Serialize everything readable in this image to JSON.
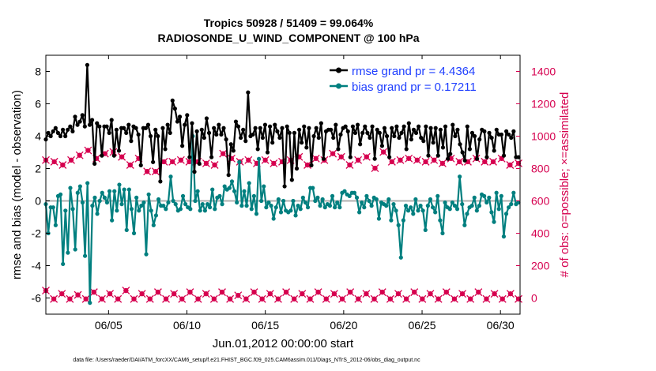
{
  "chart_data": {
    "type": "line",
    "title_line1": "Tropics 50928 / 51409 = 99.064%",
    "title_line2": "RADIOSONDE_U_WIND_COMPONENT @ 100 hPa",
    "xlabel": "Jun.01,2012 00:00:00 start",
    "ylabel_left": "rmse and bias (model - observation)",
    "ylabel_right": "# of obs: o=possible; ×=assimilated",
    "footnote": "data file: /Users/raeder/DAI/ATM_forcXX/CAM6_setup/f.e21.FHIST_BGC.f09_025.CAM6assim.011/Diags_NTrS_2012-06/obs_diag_output.nc",
    "xlim": [
      1.0,
      31.25
    ],
    "ylim_left": [
      -7,
      9
    ],
    "ylim_right": [
      -100,
      1500
    ],
    "x_ticks": [
      5,
      10,
      15,
      20,
      25,
      30
    ],
    "x_tick_labels": [
      "06/05",
      "06/10",
      "06/15",
      "06/20",
      "06/25",
      "06/30"
    ],
    "y_ticks_left": [
      8,
      6,
      4,
      2,
      0,
      -2,
      -4,
      -6
    ],
    "y_tick_labels_left": [
      "8",
      "6",
      "4",
      "2",
      "0",
      "-2",
      "-4",
      "-6"
    ],
    "y_ticks_right": [
      1400,
      1200,
      1000,
      800,
      600,
      400,
      200,
      0
    ],
    "y_tick_labels_right": [
      "1400",
      "1200",
      "1000",
      "800",
      "600",
      "400",
      "200",
      "0"
    ],
    "colors": {
      "rmse": "#000000",
      "bias": "#007f7f",
      "obs": "#d6004f",
      "zero": "#b0b0b0",
      "legend_text": "#1f3fff"
    },
    "series": [
      {
        "name": "rmse",
        "legend": "rmse grand pr = 4.4364",
        "values": [
          3.8,
          4.2,
          4.0,
          4.3,
          4.5,
          4.2,
          4.0,
          4.4,
          4.0,
          4.4,
          4.6,
          4.3,
          5.2,
          4.7,
          4.9,
          5.3,
          4.6,
          8.4,
          4.7,
          5.0,
          2.3,
          4.8,
          4.6,
          2.8,
          4.6,
          4.6,
          4.2,
          5.0,
          2.8,
          4.4,
          3.1,
          4.5,
          4.5,
          4.2,
          4.7,
          3.7,
          4.6,
          4.5,
          4.1,
          2.2,
          4.5,
          4.5,
          4.7,
          4.0,
          2.4,
          4.4,
          4.0,
          1.2,
          4.5,
          3.2,
          4.7,
          4.2,
          6.2,
          5.7,
          4.9,
          5.2,
          3.4,
          4.7,
          5.3,
          2.7,
          4.8,
          1.8,
          4.3,
          2.3,
          4.4,
          3.9,
          5.1,
          4.2,
          2.7,
          4.5,
          4.1,
          4.7,
          4.1,
          4.5,
          3.8,
          1.6,
          3.5,
          3.1,
          4.9,
          4.6,
          3.9,
          4.4,
          3.7,
          6.7,
          4.0,
          4.1,
          4.5,
          3.2,
          4.5,
          3.9,
          4.7,
          3.0,
          4.6,
          3.6,
          4.7,
          4.3,
          3.9,
          4.5,
          0.9,
          4.6,
          4.2,
          1.3,
          4.2,
          2.0,
          4.4,
          3.6,
          4.6,
          3.3,
          4.5,
          2.2,
          4.0,
          4.5,
          3.9,
          4.8,
          2.6,
          4.3,
          4.4,
          4.4,
          3.9,
          4.7,
          3.2,
          4.1,
          4.5,
          4.6,
          4.3,
          2.7,
          4.6,
          4.2,
          4.7,
          3.5,
          4.2,
          4.6,
          4.2,
          3.9,
          4.6,
          2.6,
          4.4,
          4.2,
          3.4,
          4.5,
          4.0,
          2.7,
          4.5,
          4.0,
          4.6,
          3.9,
          4.2,
          4.6,
          3.2,
          4.8,
          3.8,
          4.4,
          4.2,
          4.6,
          3.9,
          3.7,
          4.6,
          2.8,
          4.5,
          3.6,
          4.5,
          2.8,
          4.4,
          3.3,
          4.6,
          2.6,
          2.9,
          4.7,
          4.0,
          4.4,
          3.5,
          3.0,
          2.5,
          4.6,
          3.2,
          4.2,
          4.0,
          2.6,
          3.8,
          4.4,
          4.3,
          2.7,
          4.2,
          3.9,
          3.1,
          4.4,
          4.1,
          4.1,
          2.8,
          4.3,
          4.1,
          3.9,
          4.3,
          2.7,
          2.7
        ]
      },
      {
        "name": "bias",
        "legend": "bias grand pr = 0.17211",
        "values": [
          -0.2,
          -2.0,
          -0.4,
          -0.4,
          -1.5,
          0.3,
          0.4,
          -3.9,
          -0.6,
          -3.2,
          0.8,
          -0.5,
          -3.0,
          0.5,
          0.9,
          -0.1,
          -3.4,
          1.1,
          -6.3,
          -0.3,
          0.2,
          -0.8,
          0.0,
          0.5,
          0.2,
          -0.1,
          0.6,
          -1.2,
          0.6,
          -0.6,
          1.0,
          -0.2,
          0.7,
          -1.8,
          0.7,
          -0.5,
          -2.0,
          0.2,
          -0.6,
          -0.3,
          -0.1,
          -3.3,
          0.4,
          -0.6,
          -1.5,
          -0.9,
          0.1,
          -0.3,
          -0.3,
          -0.5,
          -0.1,
          1.5,
          0.0,
          -0.2,
          -0.6,
          -0.5,
          0.3,
          -0.2,
          -0.4,
          -0.5,
          4.0,
          0.0,
          0.6,
          -0.6,
          -0.2,
          -0.6,
          -0.2,
          -0.4,
          0.7,
          -0.5,
          0.2,
          0.3,
          -0.2,
          0.9,
          0.7,
          0.8,
          1.2,
          0.6,
          -0.1,
          2.4,
          -0.3,
          0.6,
          -0.3,
          1.1,
          -0.5,
          0.3,
          -0.8,
          2.6,
          0.0,
          0.9,
          -0.4,
          -0.1,
          -0.3,
          -1.1,
          -0.4,
          0.1,
          -0.7,
          0.0,
          -0.6,
          -0.7,
          -0.6,
          0.0,
          -0.9,
          -0.3,
          -0.5,
          0.2,
          -0.1,
          -0.4,
          0.8,
          0.8,
          0.0,
          0.2,
          -0.3,
          0.1,
          -0.4,
          -0.2,
          -0.3,
          0.3,
          -0.4,
          -0.1,
          -0.4,
          0.5,
          0.6,
          0.4,
          0.3,
          0.5,
          0.5,
          0.2,
          -0.7,
          -0.1,
          -0.4,
          0.3,
          0.0,
          -0.3,
          0.2,
          0.1,
          -1.1,
          -0.1,
          -0.2,
          -0.3,
          0.1,
          -1.2,
          -0.2,
          -0.6,
          -1.5,
          -3.5,
          -1.2,
          -0.3,
          -0.6,
          -0.4,
          -0.8,
          0.1,
          -0.6,
          -0.3,
          -0.6,
          -1.8,
          -0.3,
          0.1,
          -0.4,
          -0.7,
          0.3,
          -1.2,
          -2.0,
          -0.1,
          -0.4,
          -0.5,
          -0.1,
          -0.3,
          -0.5,
          1.5,
          -0.2,
          -1.5,
          -0.8,
          -0.4,
          -0.3,
          0.2,
          -0.6,
          -0.3,
          0.4,
          0.3,
          -0.1,
          0.2,
          -0.7,
          -1.3,
          0.5,
          -0.5,
          0.3,
          -2.2,
          -0.8,
          -0.4,
          -0.2,
          0.5,
          -0.2,
          -0.1
        ]
      },
      {
        "name": "obs_possible",
        "values": [
          852,
          842,
          822,
          852,
          882,
          912,
          862,
          892,
          902,
          872,
          822,
          862,
          782,
          782,
          842,
          842,
          852,
          842,
          842,
          832,
          822,
          892,
          862,
          842,
          852,
          832,
          852,
          832,
          842,
          852,
          872,
          822,
          862,
          852,
          892,
          872,
          822,
          852,
          872,
          802,
          902,
          842,
          852,
          862,
          852,
          842,
          852,
          832,
          862,
          842,
          842,
          862,
          842,
          842,
          862,
          822,
          832
        ]
      },
      {
        "name": "obs_assimilated",
        "values": [
          46,
          -6,
          26,
          -6,
          19,
          -6,
          36,
          -6,
          26,
          -6,
          46,
          -6,
          26,
          -6,
          36,
          -6,
          26,
          -6,
          36,
          -6,
          26,
          -6,
          36,
          -6,
          16,
          -6,
          36,
          -6,
          26,
          -6,
          36,
          -6,
          26,
          -6,
          36,
          -6,
          26,
          -6,
          36,
          -6,
          26,
          -6,
          36,
          -6,
          26,
          -6,
          36,
          -6,
          26,
          -6,
          36,
          -6,
          26,
          -6,
          36,
          -6,
          26,
          -6,
          26,
          -6
        ]
      }
    ],
    "legend_position": "top-right",
    "grid": false
  }
}
